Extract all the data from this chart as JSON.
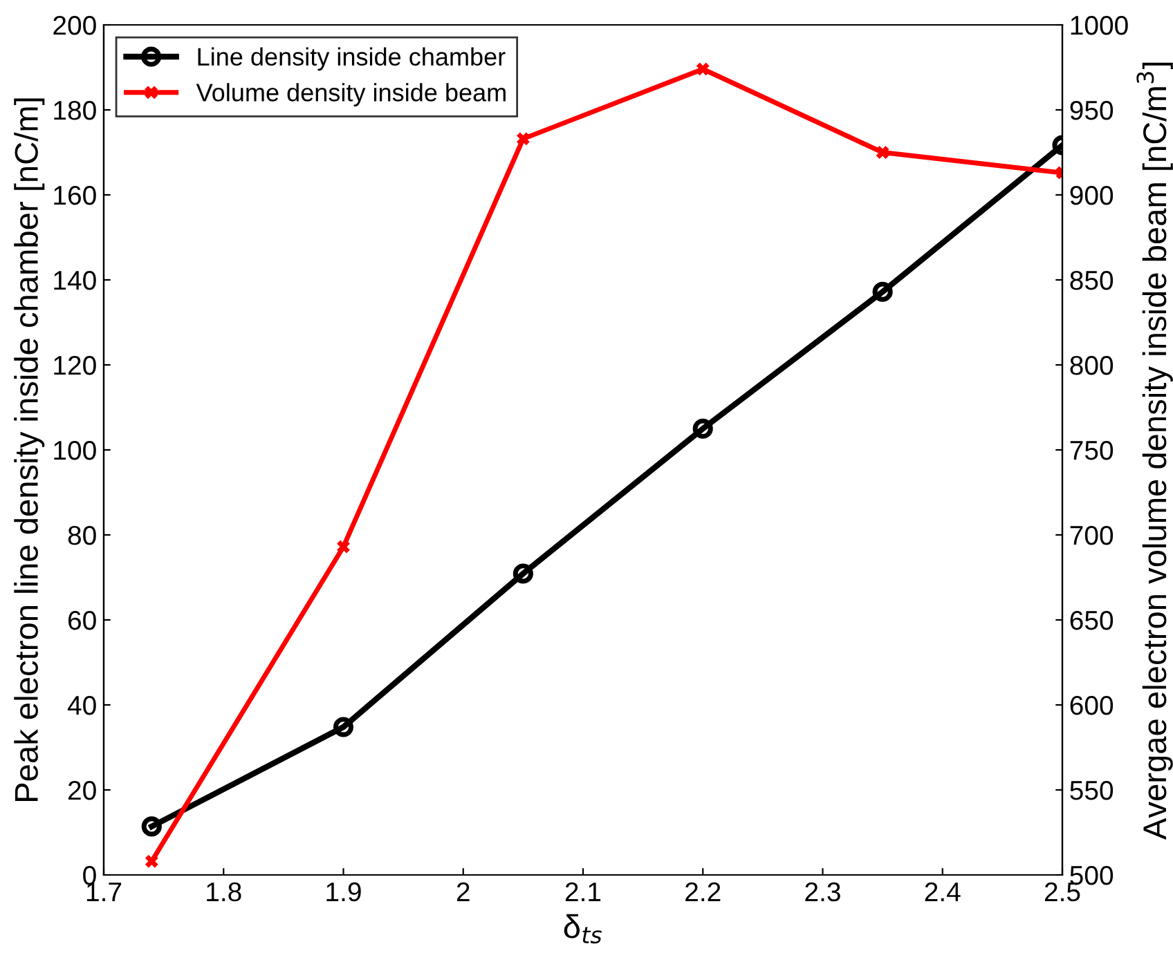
{
  "chart_data": {
    "type": "line",
    "xlabel": "δ$_{ts}$",
    "ylabel": "Peak electron line density inside chamber [nC/m]",
    "y2label": "Avergae electron volume density inside beam [nC/m$^{3}$]",
    "x": [
      1.74,
      1.9,
      2.05,
      2.2,
      2.35,
      2.5
    ],
    "series": [
      {
        "name": "Line density inside chamber",
        "color": "#000000",
        "marker": "circle",
        "values": [
          11.4,
          34.8,
          70.9,
          105,
          137.2,
          171.7
        ]
      },
      {
        "name": "Volume density inside beam",
        "color": "#ff0000",
        "marker": "cross",
        "axis": "y2",
        "values": [
          508,
          693,
          933,
          974,
          925,
          913
        ]
      }
    ],
    "xlim": [
      1.7,
      2.5
    ],
    "xticks": [
      1.7,
      1.8,
      1.9,
      2,
      2.1,
      2.2,
      2.3,
      2.4,
      2.5
    ],
    "ylim": [
      0,
      200
    ],
    "yticks": [
      0,
      20,
      40,
      60,
      80,
      100,
      120,
      140,
      160,
      180,
      200
    ],
    "y2lim": [
      500,
      1000
    ],
    "y2ticks": [
      500,
      550,
      600,
      650,
      700,
      750,
      800,
      850,
      900,
      950,
      1000
    ],
    "legend": "top left",
    "grid": false,
    "line_style": "solid"
  }
}
